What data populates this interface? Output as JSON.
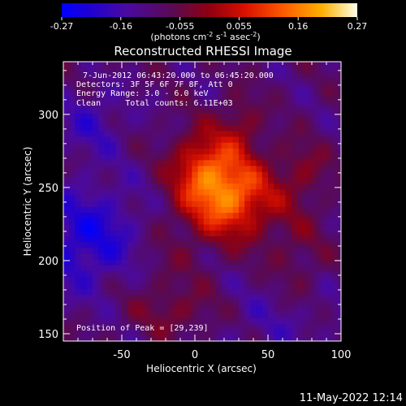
{
  "chart_data": {
    "type": "heatmap",
    "title": "Reconstructed RHESSI Image",
    "xlabel": "Heliocentric X (arcsec)",
    "ylabel": "Heliocentric Y (arcsec)",
    "xlim": [
      -90,
      100
    ],
    "ylim": [
      145,
      336
    ],
    "xticks": [
      -50,
      0,
      50,
      100
    ],
    "yticks": [
      150,
      200,
      250,
      300
    ],
    "colorbar": {
      "ticks": [
        "-0.27",
        "-0.16",
        "-0.055",
        "0.055",
        "0.16",
        "0.27"
      ],
      "range": [
        -0.27,
        0.27
      ],
      "unit_text": "(photons cm",
      "unit_sup1": "-2",
      "unit_mid1": " s",
      "unit_sup2": "-1",
      "unit_mid2": " asec",
      "unit_sup3": "-2",
      "unit_end": ")"
    },
    "annotations": [
      "7-Jun-2012 06:43:20.000 to 06:45:20.000",
      "Detectors: 3F 5F 6F 7F 8F, Att 0",
      "Energy Range: 3.0 - 6.0 keV",
      "Clean     Total counts: 6.11E+03"
    ],
    "peak_label": "Position of Peak = [29,239]",
    "peak": {
      "x": 29,
      "y": 239,
      "value": 0.27
    },
    "sources": [
      {
        "x": 22,
        "y": 245,
        "sx": 22,
        "sy": 20,
        "amp": 0.26
      },
      {
        "x": 5,
        "y": 268,
        "sx": 14,
        "sy": 16,
        "amp": 0.12
      },
      {
        "x": 30,
        "y": 292,
        "sx": 10,
        "sy": 14,
        "amp": 0.08
      },
      {
        "x": -30,
        "y": 200,
        "sx": 22,
        "sy": 25,
        "amp": 0.05
      },
      {
        "x": -10,
        "y": 165,
        "sx": 20,
        "sy": 12,
        "amp": 0.06
      },
      {
        "x": 75,
        "y": 262,
        "sx": 12,
        "sy": 14,
        "amp": 0.06
      },
      {
        "x": 70,
        "y": 200,
        "sx": 14,
        "sy": 30,
        "amp": 0.05
      },
      {
        "x": -70,
        "y": 295,
        "sx": 16,
        "sy": 16,
        "amp": -0.07
      },
      {
        "x": -70,
        "y": 215,
        "sx": 30,
        "sy": 25,
        "amp": -0.13
      },
      {
        "x": 60,
        "y": 160,
        "sx": 30,
        "sy": 20,
        "amp": -0.05
      }
    ]
  },
  "footer": {
    "timestamp": "11-May-2022 12:14"
  }
}
